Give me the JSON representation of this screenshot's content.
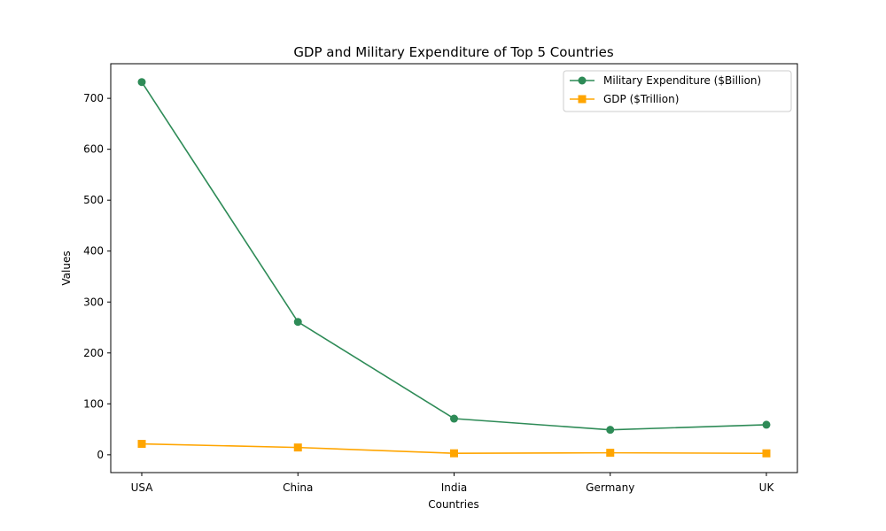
{
  "chart_data": {
    "type": "line",
    "title": "GDP and Military Expenditure of Top 5 Countries",
    "xlabel": "Countries",
    "ylabel": "Values",
    "categories": [
      "USA",
      "China",
      "India",
      "Germany",
      "UK"
    ],
    "ylim": [
      -35,
      768
    ],
    "yticks": [
      0,
      100,
      200,
      300,
      400,
      500,
      600,
      700
    ],
    "grid": false,
    "legend_position": "top-right",
    "series": [
      {
        "name": "Military Expenditure ($Billion)",
        "values": [
          732,
          261,
          71,
          49,
          59
        ],
        "color": "#2e8b57",
        "marker": "circle"
      },
      {
        "name": "GDP ($Trillion)",
        "values": [
          21.4,
          14.3,
          2.9,
          3.9,
          2.8
        ],
        "color": "#ffa500",
        "marker": "square"
      }
    ]
  }
}
